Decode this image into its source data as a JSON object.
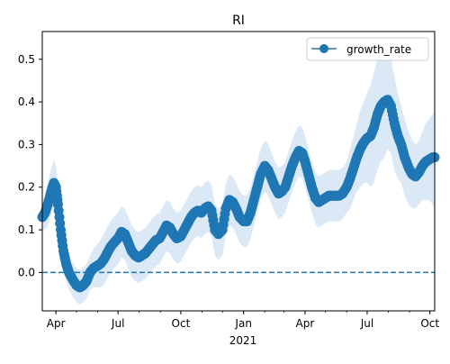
{
  "chart_data": {
    "type": "line",
    "title": "RI",
    "xlabel": "",
    "ylabel": "",
    "x_range": [
      "2020-03-12",
      "2021-10-08"
    ],
    "ylim": [
      -0.09,
      0.565
    ],
    "x_ticks": [
      {
        "date": "2020-04-01",
        "label": "Apr"
      },
      {
        "date": "2020-07-01",
        "label": "Jul"
      },
      {
        "date": "2020-10-01",
        "label": "Oct"
      },
      {
        "date": "2021-01-01",
        "label": "Jan"
      },
      {
        "date": "2021-04-01",
        "label": "Apr"
      },
      {
        "date": "2021-07-01",
        "label": "Jul"
      },
      {
        "date": "2021-10-01",
        "label": "Oct"
      }
    ],
    "x_year_label": "2021",
    "y_ticks": [
      0.0,
      0.1,
      0.2,
      0.3,
      0.4,
      0.5
    ],
    "y_tick_labels": [
      "0.0",
      "0.1",
      "0.2",
      "0.3",
      "0.4",
      "0.5"
    ],
    "legend": {
      "placement": "top-right",
      "entries": [
        "growth_rate"
      ]
    },
    "reference_line": {
      "y": 0.0,
      "style": "dashed"
    },
    "grid": false,
    "colors": {
      "line": "#1f77b4",
      "band": "#dbe8f5"
    },
    "series": [
      {
        "name": "growth_rate",
        "x": [
          "2020-03-12",
          "2020-03-16",
          "2020-03-20",
          "2020-03-25",
          "2020-03-29",
          "2020-04-01",
          "2020-04-04",
          "2020-04-08",
          "2020-04-12",
          "2020-04-16",
          "2020-04-20",
          "2020-04-25",
          "2020-05-01",
          "2020-05-06",
          "2020-05-11",
          "2020-05-16",
          "2020-05-21",
          "2020-05-26",
          "2020-05-31",
          "2020-06-05",
          "2020-06-10",
          "2020-06-15",
          "2020-06-20",
          "2020-06-25",
          "2020-07-01",
          "2020-07-06",
          "2020-07-11",
          "2020-07-16",
          "2020-07-21",
          "2020-07-26",
          "2020-07-31",
          "2020-08-05",
          "2020-08-10",
          "2020-08-15",
          "2020-08-20",
          "2020-08-25",
          "2020-08-31",
          "2020-09-05",
          "2020-09-10",
          "2020-09-15",
          "2020-09-20",
          "2020-09-25",
          "2020-10-01",
          "2020-10-06",
          "2020-10-11",
          "2020-10-16",
          "2020-10-21",
          "2020-10-26",
          "2020-10-31",
          "2020-11-05",
          "2020-11-10",
          "2020-11-15",
          "2020-11-20",
          "2020-11-25",
          "2020-12-01",
          "2020-12-06",
          "2020-12-11",
          "2020-12-16",
          "2020-12-21",
          "2020-12-26",
          "2021-01-01",
          "2021-01-06",
          "2021-01-11",
          "2021-01-16",
          "2021-01-21",
          "2021-01-26",
          "2021-02-01",
          "2021-02-06",
          "2021-02-11",
          "2021-02-16",
          "2021-02-21",
          "2021-02-26",
          "2021-03-03",
          "2021-03-08",
          "2021-03-13",
          "2021-03-18",
          "2021-03-23",
          "2021-03-28",
          "2021-04-01",
          "2021-04-06",
          "2021-04-11",
          "2021-04-16",
          "2021-04-21",
          "2021-04-26",
          "2021-05-01",
          "2021-05-06",
          "2021-05-11",
          "2021-05-16",
          "2021-05-21",
          "2021-05-26",
          "2021-06-01",
          "2021-06-06",
          "2021-06-11",
          "2021-06-16",
          "2021-06-21",
          "2021-06-26",
          "2021-07-01",
          "2021-07-06",
          "2021-07-11",
          "2021-07-16",
          "2021-07-21",
          "2021-07-26",
          "2021-07-31",
          "2021-08-05",
          "2021-08-10",
          "2021-08-15",
          "2021-08-20",
          "2021-08-25",
          "2021-08-31",
          "2021-09-05",
          "2021-09-10",
          "2021-09-15",
          "2021-09-20",
          "2021-09-25",
          "2021-09-30",
          "2021-10-05",
          "2021-10-08"
        ],
        "y": [
          0.13,
          0.14,
          0.16,
          0.19,
          0.21,
          0.2,
          0.16,
          0.1,
          0.05,
          0.02,
          0.0,
          -0.015,
          -0.03,
          -0.035,
          -0.03,
          -0.02,
          0.0,
          0.01,
          0.015,
          0.02,
          0.03,
          0.045,
          0.06,
          0.07,
          0.08,
          0.095,
          0.09,
          0.07,
          0.05,
          0.04,
          0.035,
          0.04,
          0.045,
          0.055,
          0.065,
          0.075,
          0.08,
          0.095,
          0.11,
          0.105,
          0.09,
          0.08,
          0.085,
          0.1,
          0.115,
          0.13,
          0.14,
          0.145,
          0.14,
          0.15,
          0.155,
          0.145,
          0.1,
          0.09,
          0.1,
          0.15,
          0.17,
          0.165,
          0.15,
          0.13,
          0.12,
          0.12,
          0.14,
          0.17,
          0.2,
          0.23,
          0.25,
          0.24,
          0.22,
          0.2,
          0.185,
          0.19,
          0.2,
          0.225,
          0.25,
          0.27,
          0.285,
          0.28,
          0.26,
          0.23,
          0.2,
          0.175,
          0.165,
          0.17,
          0.175,
          0.18,
          0.18,
          0.18,
          0.18,
          0.185,
          0.2,
          0.22,
          0.245,
          0.27,
          0.29,
          0.305,
          0.315,
          0.32,
          0.34,
          0.37,
          0.39,
          0.4,
          0.405,
          0.39,
          0.35,
          0.32,
          0.3,
          0.27,
          0.245,
          0.23,
          0.225,
          0.235,
          0.25,
          0.26,
          0.265,
          0.27,
          0.27
        ],
        "band_upper": [
          0.16,
          0.18,
          0.21,
          0.245,
          0.265,
          0.25,
          0.21,
          0.15,
          0.09,
          0.06,
          0.04,
          0.025,
          0.01,
          0.005,
          0.01,
          0.02,
          0.04,
          0.055,
          0.065,
          0.075,
          0.09,
          0.105,
          0.12,
          0.13,
          0.14,
          0.155,
          0.15,
          0.13,
          0.11,
          0.1,
          0.095,
          0.1,
          0.105,
          0.115,
          0.125,
          0.135,
          0.14,
          0.155,
          0.17,
          0.165,
          0.15,
          0.14,
          0.145,
          0.16,
          0.175,
          0.19,
          0.2,
          0.205,
          0.2,
          0.21,
          0.215,
          0.205,
          0.16,
          0.15,
          0.16,
          0.21,
          0.23,
          0.225,
          0.21,
          0.19,
          0.18,
          0.18,
          0.2,
          0.23,
          0.26,
          0.29,
          0.31,
          0.3,
          0.28,
          0.26,
          0.245,
          0.25,
          0.26,
          0.285,
          0.31,
          0.33,
          0.345,
          0.34,
          0.32,
          0.29,
          0.26,
          0.235,
          0.225,
          0.23,
          0.235,
          0.24,
          0.24,
          0.24,
          0.24,
          0.245,
          0.26,
          0.29,
          0.32,
          0.35,
          0.38,
          0.4,
          0.42,
          0.44,
          0.47,
          0.5,
          0.52,
          0.53,
          0.52,
          0.5,
          0.46,
          0.42,
          0.39,
          0.36,
          0.33,
          0.31,
          0.3,
          0.31,
          0.33,
          0.35,
          0.36,
          0.37,
          0.38
        ],
        "band_lower": [
          0.1,
          0.1,
          0.11,
          0.135,
          0.155,
          0.15,
          0.11,
          0.05,
          0.01,
          -0.02,
          -0.04,
          -0.055,
          -0.07,
          -0.075,
          -0.07,
          -0.06,
          -0.04,
          -0.035,
          -0.035,
          -0.035,
          -0.03,
          -0.015,
          0.0,
          0.01,
          0.02,
          0.035,
          0.03,
          0.01,
          -0.01,
          -0.02,
          -0.025,
          -0.02,
          -0.015,
          -0.005,
          0.005,
          0.015,
          0.02,
          0.035,
          0.05,
          0.045,
          0.03,
          0.02,
          0.025,
          0.04,
          0.055,
          0.07,
          0.08,
          0.085,
          0.08,
          0.09,
          0.095,
          0.085,
          0.04,
          0.03,
          0.04,
          0.09,
          0.11,
          0.105,
          0.09,
          0.07,
          0.06,
          0.06,
          0.08,
          0.11,
          0.14,
          0.17,
          0.19,
          0.18,
          0.16,
          0.14,
          0.125,
          0.13,
          0.14,
          0.165,
          0.19,
          0.21,
          0.225,
          0.22,
          0.2,
          0.17,
          0.14,
          0.115,
          0.105,
          0.11,
          0.115,
          0.12,
          0.12,
          0.12,
          0.12,
          0.125,
          0.14,
          0.15,
          0.17,
          0.19,
          0.2,
          0.21,
          0.21,
          0.2,
          0.21,
          0.24,
          0.26,
          0.27,
          0.29,
          0.28,
          0.24,
          0.22,
          0.21,
          0.18,
          0.16,
          0.15,
          0.15,
          0.16,
          0.17,
          0.17,
          0.17,
          0.16,
          0.14
        ]
      }
    ]
  }
}
